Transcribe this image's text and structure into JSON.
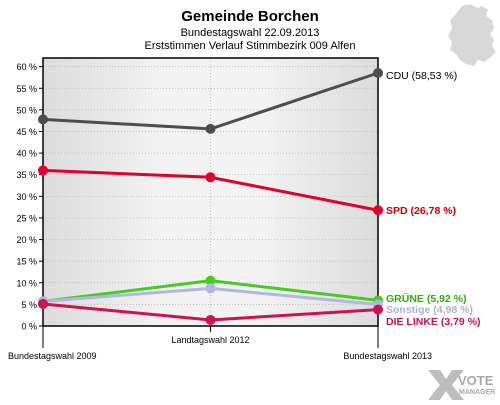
{
  "header": {
    "title": "Gemeinde Borchen",
    "subtitle": "Bundestagswahl 22.09.2013",
    "subtitle2": "Erststimmen Verlauf Stimmbezirk 009 Alfen"
  },
  "logo": {
    "text_top": "VOTE",
    "text_bottom": "MANAGER"
  },
  "chart_data": {
    "type": "line",
    "title": "Gemeinde Borchen",
    "categories": [
      "Bundestagswahl 2009",
      "Landtagswahl 2012",
      "Bundestagswahl 2013"
    ],
    "ylim": [
      0,
      62
    ],
    "yticks": [
      0,
      5,
      10,
      15,
      20,
      25,
      30,
      35,
      40,
      45,
      50,
      55,
      60
    ],
    "ytick_labels": [
      "0 %",
      "5 %",
      "10 %",
      "15 %",
      "20 %",
      "25 %",
      "30 %",
      "35 %",
      "40 %",
      "45 %",
      "50 %",
      "55 %",
      "60 %"
    ],
    "grid": true,
    "legend": "end-labels",
    "series": [
      {
        "name": "CDU",
        "label": "CDU (58,53 %)",
        "values": [
          47.8,
          45.6,
          58.53
        ],
        "color": "#4d4d4d",
        "label_color": "#000000"
      },
      {
        "name": "SPD",
        "label": "SPD (26,78 %)",
        "values": [
          36.0,
          34.4,
          26.78
        ],
        "color": "#e0002a",
        "label_color": "#cc0000"
      },
      {
        "name": "GRÜNE",
        "label": "GRÜNE (5,92 %)",
        "values": [
          5.7,
          10.5,
          5.92
        ],
        "color": "#44cc22",
        "label_color": "#33aa11"
      },
      {
        "name": "Sonstige",
        "label": "Sonstige (4,98 %)",
        "values": [
          5.7,
          8.7,
          4.98
        ],
        "color": "#b0b8e0",
        "label_color": "#aab0dd"
      },
      {
        "name": "DIE LINKE",
        "label": "DIE LINKE (3,79 %)",
        "values": [
          5.1,
          1.4,
          3.79
        ],
        "color": "#cc1155",
        "label_color": "#cc1155"
      }
    ]
  }
}
